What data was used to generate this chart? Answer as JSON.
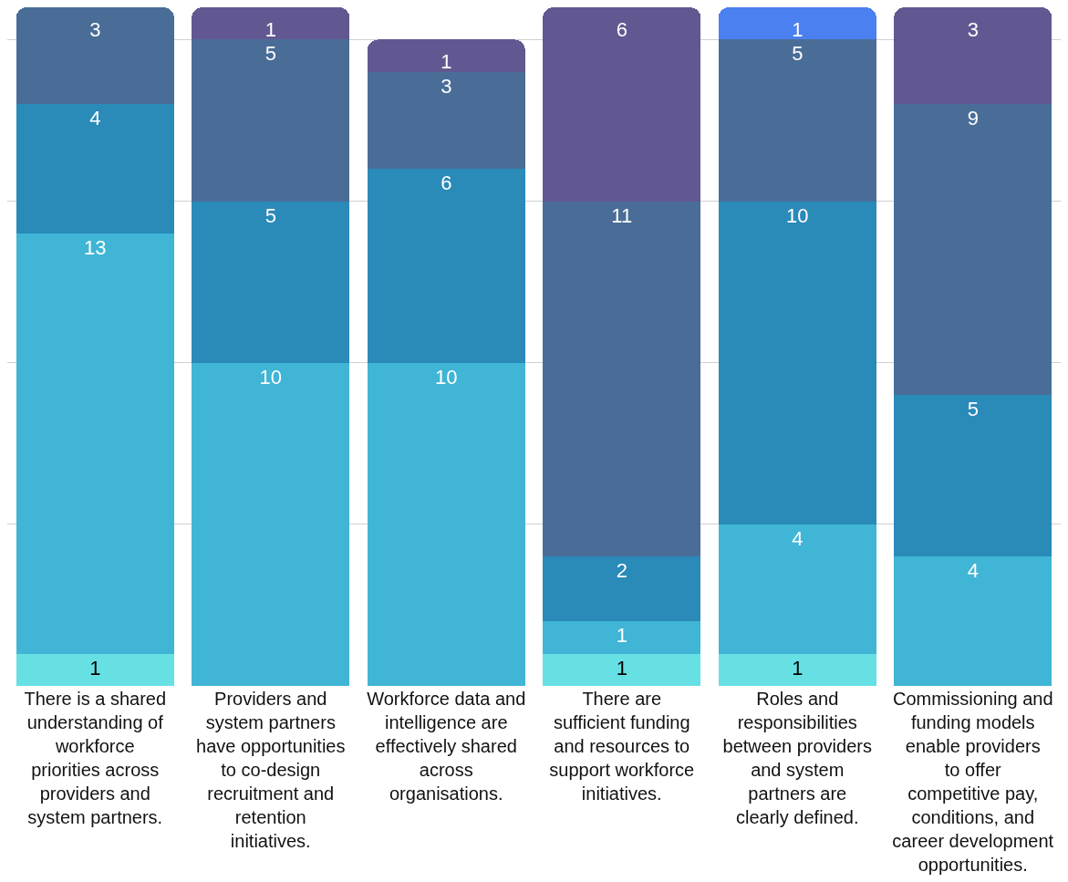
{
  "chart_data": {
    "type": "bar",
    "stacked": true,
    "data_labels": true,
    "grid": "y",
    "tick_labels": "x",
    "categories": [
      "There is a shared understanding of workforce priorities across providers and system partners.",
      "Providers and system partners have opportunities to co-design recruitment and retention initiatives.",
      "Workforce data and intelligence are effectively shared across organisations.",
      "There are sufficient funding and resources to support workforce initiatives.",
      "Roles and responsibilities between providers and system partners are clearly defined.",
      "Commissioning and funding models enable providers to offer competitive pay, conditions, and career development opportunities."
    ],
    "ylim": [
      0,
      21
    ],
    "yticks": [
      {
        "value": 5,
        "label": null
      },
      {
        "value": 10,
        "label": null
      },
      {
        "value": 15,
        "label": null
      },
      {
        "value": 20,
        "label": null
      }
    ],
    "series": [
      {
        "color": "#67e0e3",
        "values": [
          1,
          null,
          null,
          1,
          1,
          null
        ]
      },
      {
        "color": "#40b5d5",
        "values": [
          13,
          10,
          10,
          1,
          4,
          4
        ]
      },
      {
        "color": "#2a8ab8",
        "values": [
          4,
          5,
          6,
          2,
          10,
          5
        ]
      },
      {
        "color": "#4a6d98",
        "values": [
          3,
          5,
          3,
          11,
          5,
          9
        ]
      },
      {
        "color": "#625891",
        "values": [
          null,
          1,
          1,
          6,
          null,
          3
        ]
      },
      {
        "color": "#4a80f0",
        "values": [
          null,
          null,
          null,
          null,
          1,
          null
        ]
      }
    ]
  }
}
